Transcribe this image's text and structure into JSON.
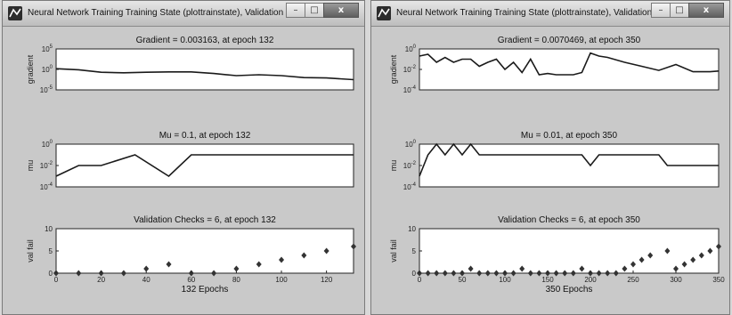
{
  "windows": [
    {
      "title": "Neural Network Training Training State (plottrainstate), Validation stop.",
      "buttons": {
        "minimize": "–",
        "maximize": "□",
        "close": "x"
      },
      "chart_data": [
        {
          "type": "line",
          "title": "Gradient = 0.003163, at epoch 132",
          "ylabel": "gradient",
          "yscale": "log",
          "ylim": [
            1e-05,
            100000
          ],
          "yticks": [
            "10^5",
            "10^0",
            "10^-5"
          ],
          "x": [
            0,
            10,
            20,
            30,
            40,
            50,
            60,
            70,
            80,
            90,
            100,
            110,
            120,
            132
          ],
          "y": [
            1.5,
            0.8,
            0.2,
            0.15,
            0.2,
            0.25,
            0.25,
            0.1,
            0.03,
            0.05,
            0.03,
            0.01,
            0.008,
            0.003163
          ]
        },
        {
          "type": "line",
          "title": "Mu = 0.1, at epoch 132",
          "ylabel": "mu",
          "yscale": "log",
          "ylim": [
            0.0001,
            1
          ],
          "yticks": [
            "10^0",
            "10^-2",
            "10^-4"
          ],
          "x": [
            0,
            10,
            20,
            35,
            50,
            60,
            70,
            80,
            90,
            100,
            110,
            120,
            132
          ],
          "y": [
            0.001,
            0.01,
            0.01,
            0.1,
            0.001,
            0.1,
            0.1,
            0.1,
            0.1,
            0.1,
            0.1,
            0.1,
            0.1
          ]
        },
        {
          "type": "scatter",
          "title": "Validation Checks = 6, at epoch 132",
          "ylabel": "val fail",
          "xlabel": "132  Epochs",
          "ylim": [
            0,
            10
          ],
          "yticks": [
            "10",
            "5",
            "0"
          ],
          "xlim": [
            0,
            132
          ],
          "xticks": [
            "0",
            "20",
            "40",
            "60",
            "80",
            "100",
            "120"
          ],
          "x": [
            0,
            10,
            20,
            30,
            40,
            50,
            60,
            70,
            80,
            90,
            100,
            110,
            120,
            132
          ],
          "y": [
            0,
            0,
            0,
            0,
            1,
            2,
            0,
            0,
            1,
            2,
            3,
            4,
            5,
            6
          ]
        }
      ]
    },
    {
      "title": "Neural Network Training Training State (plottrainstate), Validation stop.",
      "buttons": {
        "minimize": "–",
        "maximize": "□",
        "close": "x"
      },
      "chart_data": [
        {
          "type": "line",
          "title": "Gradient = 0.0070469, at epoch 350",
          "ylabel": "gradient",
          "yscale": "log",
          "ylim": [
            0.0001,
            1
          ],
          "yticks": [
            "10^0",
            "10^-2",
            "10^-4"
          ],
          "x": [
            0,
            10,
            20,
            30,
            40,
            50,
            60,
            70,
            80,
            90,
            100,
            110,
            120,
            130,
            140,
            150,
            160,
            170,
            180,
            190,
            200,
            210,
            220,
            240,
            260,
            280,
            300,
            320,
            340,
            350
          ],
          "y": [
            0.2,
            0.3,
            0.05,
            0.15,
            0.05,
            0.1,
            0.1,
            0.02,
            0.05,
            0.1,
            0.01,
            0.05,
            0.005,
            0.1,
            0.003,
            0.004,
            0.003,
            0.003,
            0.003,
            0.005,
            0.4,
            0.2,
            0.15,
            0.05,
            0.02,
            0.008,
            0.03,
            0.006,
            0.006,
            0.007
          ]
        },
        {
          "type": "line",
          "title": "Mu = 0.01, at epoch 350",
          "ylabel": "mu",
          "yscale": "log",
          "ylim": [
            0.0001,
            1
          ],
          "yticks": [
            "10^0",
            "10^-2",
            "10^-4"
          ],
          "x": [
            0,
            10,
            20,
            30,
            40,
            50,
            60,
            70,
            80,
            190,
            200,
            210,
            280,
            290,
            350
          ],
          "y": [
            0.001,
            0.1,
            1,
            0.1,
            1,
            0.1,
            1,
            0.1,
            0.1,
            0.1,
            0.01,
            0.1,
            0.1,
            0.01,
            0.01
          ]
        },
        {
          "type": "scatter",
          "title": "Validation Checks = 6, at epoch 350",
          "ylabel": "val fail",
          "xlabel": "350 Epochs",
          "ylim": [
            0,
            10
          ],
          "yticks": [
            "10",
            "5",
            "0"
          ],
          "xlim": [
            0,
            350
          ],
          "xticks": [
            "0",
            "50",
            "100",
            "150",
            "200",
            "250",
            "300",
            "350"
          ],
          "x": [
            0,
            10,
            20,
            30,
            40,
            50,
            60,
            70,
            80,
            90,
            100,
            110,
            120,
            130,
            140,
            150,
            160,
            170,
            180,
            190,
            200,
            210,
            220,
            230,
            240,
            250,
            260,
            270,
            290,
            300,
            310,
            320,
            330,
            340,
            350
          ],
          "y": [
            0,
            0,
            0,
            0,
            0,
            0,
            1,
            0,
            0,
            0,
            0,
            0,
            1,
            0,
            0,
            0,
            0,
            0,
            0,
            1,
            0,
            0,
            0,
            0,
            1,
            2,
            3,
            4,
            5,
            1,
            2,
            3,
            4,
            5,
            6
          ]
        }
      ]
    }
  ]
}
